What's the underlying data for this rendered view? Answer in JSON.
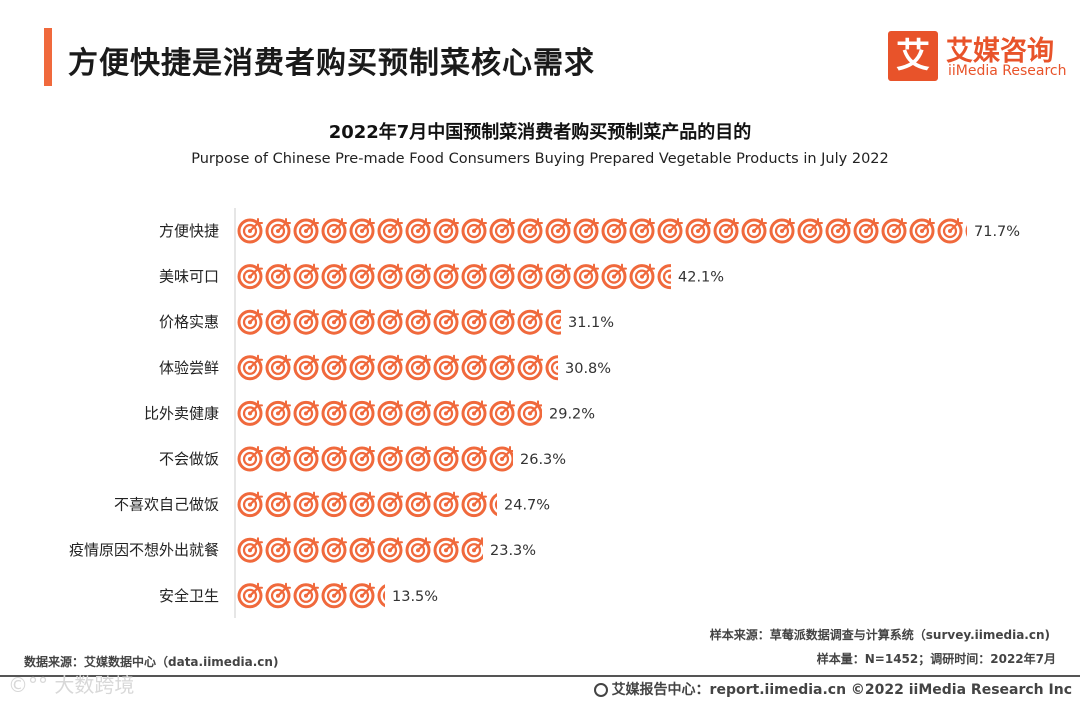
{
  "header": {
    "title": "方便快捷是消费者购买预制菜核心需求",
    "brand_logo_char": "艾",
    "brand_cn": "艾媒咨询",
    "brand_en": "iiMedia Research"
  },
  "chart_data": {
    "type": "bar",
    "title": "2022年7月中国预制菜消费者购买预制菜产品的目的",
    "subtitle": "Purpose of Chinese Pre-made Food Consumers Buying Prepared Vegetable Products in July 2022",
    "categories": [
      "方便快捷",
      "美味可口",
      "价格实惠",
      "体验尝鲜",
      "比外卖健康",
      "不会做饭",
      "不喜欢自己做饭",
      "疫情原因不想外出就餐",
      "安全卫生"
    ],
    "values": [
      71.7,
      42.1,
      31.1,
      30.8,
      29.2,
      26.3,
      24.7,
      23.3,
      13.5
    ],
    "value_labels": [
      "71.7%",
      "42.1%",
      "31.1%",
      "30.8%",
      "29.2%",
      "26.3%",
      "24.7%",
      "23.3%",
      "13.5%"
    ],
    "unit": "%",
    "orientation": "horizontal",
    "bar_style": "pictogram",
    "icon": "target-icon",
    "units_per_icon": 2.8,
    "xlabel": "",
    "ylabel": "",
    "xlim": [
      0,
      100
    ],
    "grid": false,
    "color": "#f0693c"
  },
  "notes": {
    "sample_source": "样本来源：草莓派数据调查与计算系统（survey.iimedia.cn)",
    "sample_size": "样本量：N=1452；调研时间：2022年7月",
    "data_source": "数据来源：艾媒数据中心（data.iimedia.cn)"
  },
  "footer": {
    "watermark": "©°° 大数跨境",
    "right_text": "艾媒报告中心：report.iimedia.cn  ©2022  iiMedia Research  Inc"
  }
}
